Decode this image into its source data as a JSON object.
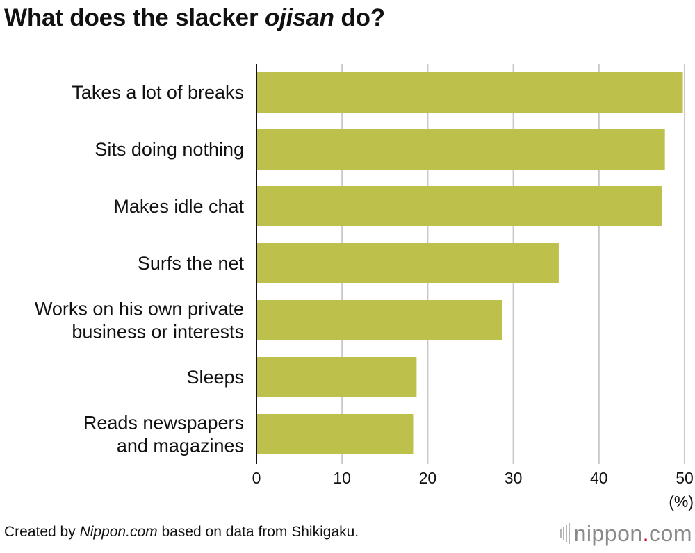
{
  "title": {
    "before": "What does the slacker ",
    "emph": "ojisan",
    "after": " do?"
  },
  "chart_data": {
    "type": "bar",
    "orientation": "horizontal",
    "categories": [
      [
        "Takes a lot of breaks"
      ],
      [
        "Sits doing nothing"
      ],
      [
        "Makes idle chat"
      ],
      [
        "Surfs the net"
      ],
      [
        "Works on his own private",
        "business or interests"
      ],
      [
        "Sleeps"
      ],
      [
        "Reads newspapers",
        "and magazines"
      ]
    ],
    "values": [
      49.8,
      47.7,
      47.4,
      35.3,
      28.7,
      18.7,
      18.3
    ],
    "xlim": [
      0,
      50
    ],
    "xticks": [
      0,
      10,
      20,
      30,
      40,
      50
    ],
    "unit": "(%)",
    "grid": true,
    "bar_color": "#bdc04a",
    "grid_color": "#c8c8c8",
    "axis_color": "#111111"
  },
  "footer": {
    "before": "Created by ",
    "emph": "Nippon.com",
    "after": " based on data from Shikigaku."
  },
  "logo": {
    "name": "nippon",
    "dot": ".",
    "suffix": "com"
  }
}
